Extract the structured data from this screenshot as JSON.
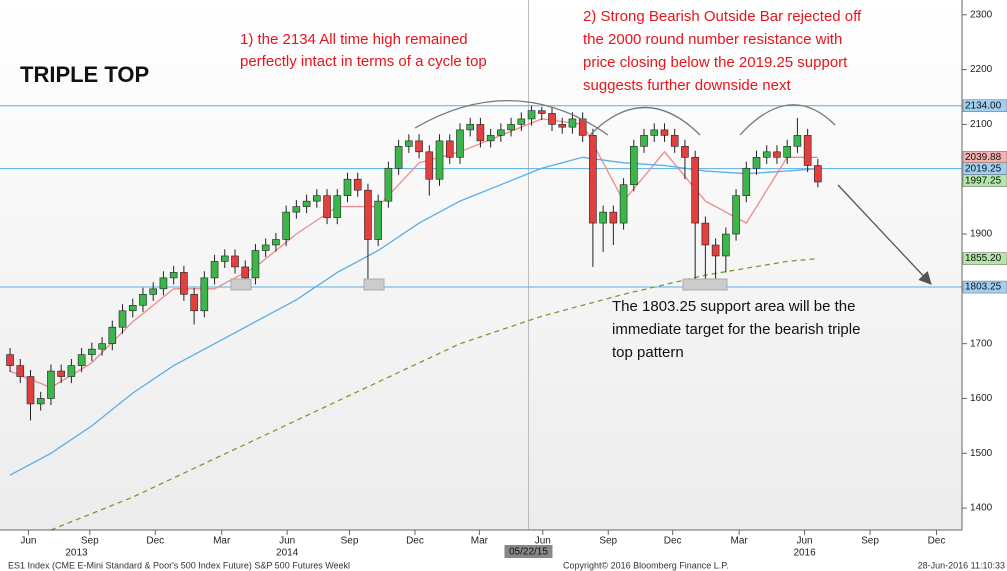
{
  "chart_data": {
    "type": "candlestick",
    "heading": "TRIPLE TOP",
    "annotations": [
      {
        "lines": [
          "1) the 2134 All time high remained",
          "perfectly intact in terms of a cycle top"
        ],
        "color": "#e8141b"
      },
      {
        "lines": [
          "2) Strong Bearish Outside Bar rejected off",
          "the 2000 round number resistance with",
          "price closing below the 2019.25 support",
          "suggests further downside next"
        ],
        "color": "#e8141b"
      },
      {
        "lines": [
          "The 1803.25 support area will be the",
          "immediate target for the bearish triple",
          "top pattern"
        ],
        "color": "#111111"
      }
    ],
    "date_marker": "05/22/15",
    "footer_left": "ES1 Index (CME E-Mini Standard & Poor's 500 Index Future) S&P 500 Futures  Weekl",
    "footer_center": "Copyright© 2016 Bloomberg Finance L.P.",
    "footer_right": "28-Jun-2016 11:10:33",
    "up_color": "#3cb54a",
    "down_color": "#e2403f",
    "open": [
      1680,
      1660,
      1640,
      1590,
      1600,
      1650,
      1640,
      1660,
      1680,
      1690,
      1700,
      1730,
      1760,
      1770,
      1790,
      1800,
      1820,
      1830,
      1790,
      1760,
      1820,
      1850,
      1860,
      1840,
      1820,
      1870,
      1880,
      1890,
      1940,
      1950,
      1960,
      1970,
      1930,
      1970,
      2000,
      1980,
      1890,
      1960,
      2020,
      2060,
      2070,
      2050,
      2000,
      2070,
      2040,
      2090,
      2100,
      2070,
      2080,
      2090,
      2100,
      2110,
      2125,
      2120,
      2100,
      2095,
      2110,
      2080,
      1920,
      1940,
      1920,
      1990,
      2060,
      2080,
      2090,
      2080,
      2060,
      2040,
      1920,
      1880,
      1860,
      1900,
      1970,
      2020,
      2040,
      2050,
      2040,
      2060,
      2080,
      2025
    ],
    "high": [
      1692,
      1672,
      1652,
      1612,
      1662,
      1662,
      1672,
      1692,
      1702,
      1712,
      1742,
      1772,
      1782,
      1802,
      1812,
      1832,
      1842,
      1842,
      1802,
      1832,
      1862,
      1872,
      1872,
      1852,
      1882,
      1892,
      1902,
      1952,
      1962,
      1972,
      1982,
      1982,
      1982,
      2012,
      2012,
      1992,
      1972,
      2032,
      2072,
      2082,
      2082,
      2062,
      2082,
      2082,
      2102,
      2112,
      2112,
      2092,
      2102,
      2112,
      2122,
      2134,
      2132,
      2132,
      2112,
      2122,
      2122,
      2092,
      1952,
      1952,
      2002,
      2072,
      2092,
      2102,
      2102,
      2092,
      2072,
      2052,
      1932,
      1892,
      1912,
      1982,
      2032,
      2052,
      2062,
      2062,
      2072,
      2112,
      2092,
      2037
    ],
    "low": [
      1648,
      1628,
      1560,
      1578,
      1588,
      1628,
      1628,
      1648,
      1668,
      1678,
      1688,
      1718,
      1748,
      1758,
      1778,
      1788,
      1808,
      1778,
      1735,
      1748,
      1808,
      1838,
      1828,
      1800,
      1808,
      1858,
      1868,
      1878,
      1928,
      1938,
      1948,
      1918,
      1918,
      1958,
      1968,
      1810,
      1878,
      1948,
      2008,
      2048,
      2038,
      1970,
      1988,
      2028,
      2028,
      2078,
      2058,
      2058,
      2068,
      2078,
      2088,
      2098,
      2108,
      2088,
      2083,
      2083,
      2068,
      1840,
      1867,
      1880,
      1908,
      1978,
      2048,
      2068,
      2068,
      2048,
      2000,
      1810,
      1805,
      1810,
      1830,
      1888,
      1958,
      2008,
      2028,
      2028,
      2028,
      2048,
      2013,
      1985
    ],
    "close": [
      1660,
      1640,
      1590,
      1600,
      1650,
      1640,
      1660,
      1680,
      1690,
      1700,
      1730,
      1760,
      1770,
      1790,
      1800,
      1820,
      1830,
      1790,
      1760,
      1820,
      1850,
      1860,
      1840,
      1820,
      1870,
      1880,
      1890,
      1940,
      1950,
      1960,
      1970,
      1930,
      1970,
      2000,
      1980,
      1890,
      1960,
      2020,
      2060,
      2070,
      2050,
      2000,
      2070,
      2040,
      2090,
      2100,
      2070,
      2080,
      2090,
      2100,
      2110,
      2125,
      2120,
      2100,
      2095,
      2110,
      2080,
      1920,
      1940,
      1920,
      1990,
      2060,
      2080,
      2090,
      2080,
      2060,
      2040,
      1920,
      1880,
      1860,
      1900,
      1970,
      2020,
      2040,
      2050,
      2040,
      2060,
      2080,
      2025,
      1995
    ],
    "lines": [
      {
        "color": "#f08a8a",
        "dash": false,
        "x": [
          0,
          4,
          8,
          12,
          16,
          20,
          24,
          28,
          32,
          36,
          40,
          44,
          48,
          52,
          56,
          60,
          64,
          68,
          72,
          76,
          79
        ],
        "values": [
          1650,
          1620,
          1665,
          1740,
          1800,
          1800,
          1840,
          1900,
          1950,
          1950,
          2030,
          2050,
          2080,
          2110,
          2100,
          1960,
          2050,
          1960,
          1920,
          2040,
          2039.88
        ]
      },
      {
        "color": "#5aaee6",
        "dash": false,
        "x": [
          0,
          4,
          8,
          12,
          16,
          20,
          24,
          28,
          32,
          36,
          40,
          44,
          48,
          52,
          56,
          60,
          64,
          68,
          72,
          76,
          79
        ],
        "values": [
          1460,
          1500,
          1550,
          1610,
          1660,
          1700,
          1740,
          1780,
          1830,
          1870,
          1920,
          1960,
          1990,
          2020,
          2040,
          2030,
          2025,
          2015,
          2010,
          2015,
          2019.25
        ]
      },
      {
        "color": "#7a9a3a",
        "dash": true,
        "x": [
          4,
          12,
          20,
          28,
          36,
          44,
          52,
          60,
          68,
          76,
          79
        ],
        "values": [
          1360,
          1420,
          1490,
          1560,
          1630,
          1700,
          1750,
          1790,
          1825,
          1850,
          1855.2
        ]
      }
    ],
    "levels": [
      {
        "value": 2134,
        "color": "#5aaee6"
      },
      {
        "value": 2019.25,
        "color": "#5aaee6"
      },
      {
        "value": 1803.25,
        "color": "#5aaee6"
      }
    ],
    "price_labels": [
      {
        "value": 2134,
        "label": "2134.00",
        "color": "#9fd0f2"
      },
      {
        "value": 2039.88,
        "label": "2039.88",
        "color": "#f5b0b0"
      },
      {
        "value": 2019.25,
        "label": "2019.25",
        "color": "#9fd0f2"
      },
      {
        "value": 1997.25,
        "label": "1997.25",
        "color": "#b3e6a8"
      },
      {
        "value": 1855.2,
        "label": "1855.20",
        "color": "#b3e6a8"
      },
      {
        "value": 1803.25,
        "label": "1803.25",
        "color": "#9fd0f2"
      }
    ],
    "xlim": [
      -0.2,
      92.9
    ],
    "xticks": [
      {
        "value": 1.8,
        "label": "Jun"
      },
      {
        "value": 7.8,
        "label": "Sep"
      },
      {
        "value": 14.2,
        "label": "Dec"
      },
      {
        "value": 20.7,
        "label": "Mar"
      },
      {
        "value": 27.1,
        "label": "Jun"
      },
      {
        "value": 33.2,
        "label": "Sep"
      },
      {
        "value": 39.6,
        "label": "Dec"
      },
      {
        "value": 45.9,
        "label": "Mar"
      },
      {
        "value": 52.1,
        "label": "Jun"
      },
      {
        "value": 58.5,
        "label": "Sep"
      },
      {
        "value": 64.8,
        "label": "Dec"
      },
      {
        "value": 71.3,
        "label": "Mar"
      },
      {
        "value": 77.7,
        "label": "Jun"
      },
      {
        "value": 84.1,
        "label": "Sep"
      },
      {
        "value": 90.6,
        "label": "Dec"
      }
    ],
    "years": [
      {
        "value": 6.5,
        "label": "2013"
      },
      {
        "value": 27.1,
        "label": "2014"
      },
      {
        "value": 77.7,
        "label": "2016"
      }
    ],
    "date_marker_x": 50.7,
    "ylim": [
      1360,
      2327
    ],
    "yticks": [
      1400,
      1500,
      1600,
      1700,
      1800,
      1900,
      2000,
      2100,
      2200,
      2300
    ]
  }
}
